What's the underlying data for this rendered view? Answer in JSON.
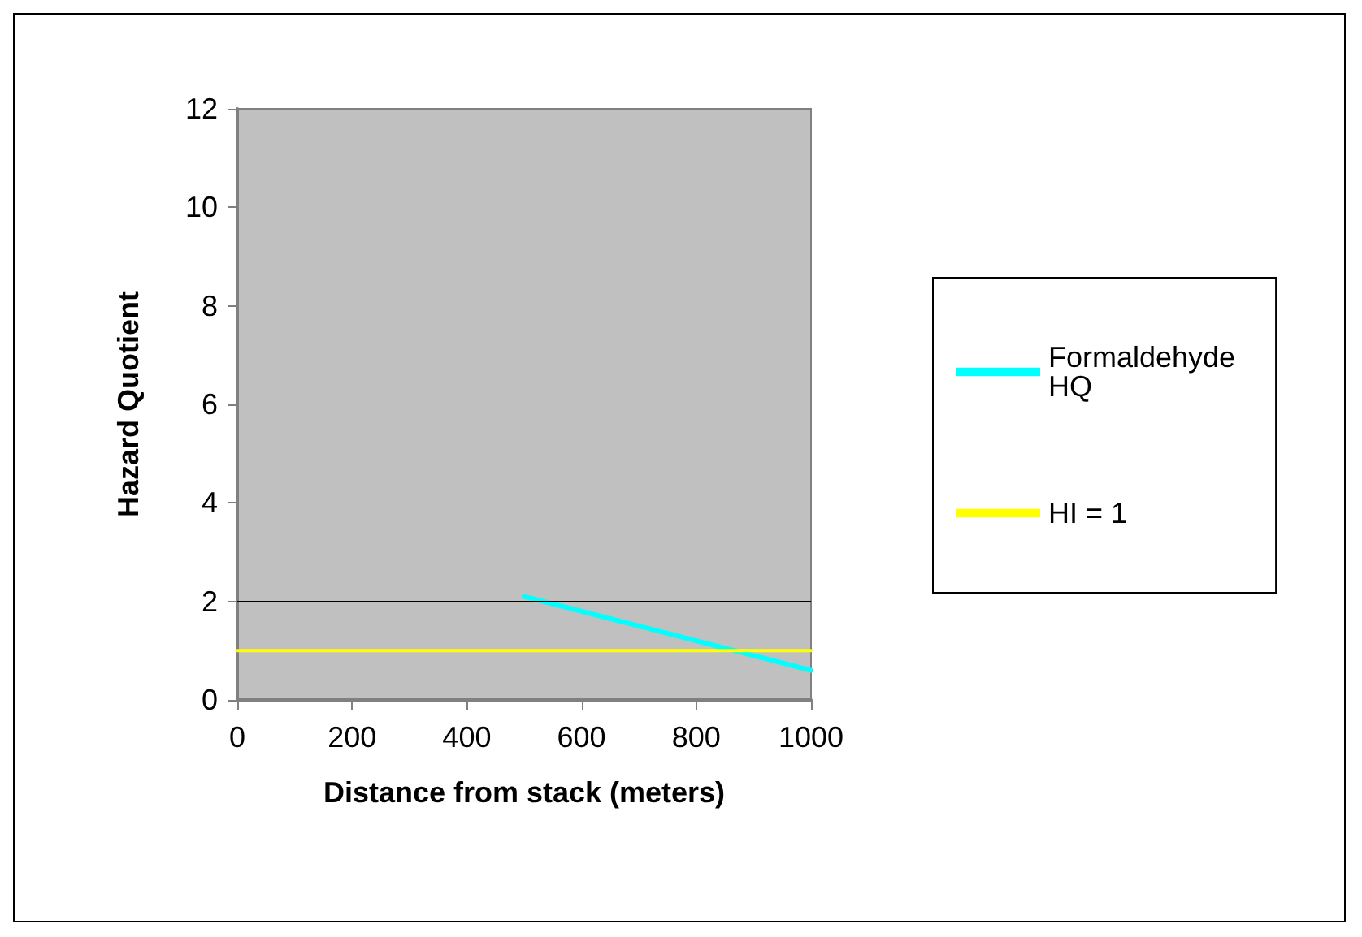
{
  "chart_data": {
    "type": "line",
    "xlabel": "Distance from stack (meters)",
    "ylabel": "Hazard Quotient",
    "series": [
      {
        "name": "Formaldehyde HQ",
        "color": "#00ffff",
        "x": [
          500,
          1000
        ],
        "values": [
          2.1,
          0.6
        ]
      },
      {
        "name": "HI = 1",
        "color": "#ffff00",
        "x": [
          0,
          1000
        ],
        "values": [
          1,
          1
        ]
      }
    ],
    "xlim": [
      0,
      1000
    ],
    "xticks": [
      0,
      200,
      400,
      600,
      800,
      1000
    ],
    "ylim": [
      0,
      12
    ],
    "yticks": [
      0,
      2,
      4,
      6,
      8,
      10,
      12
    ],
    "ref_lines": [
      {
        "axis": "y",
        "value": 2,
        "color": "#000000"
      }
    ],
    "grid": false,
    "legend": "right",
    "marker": "none",
    "line_style": "solid"
  }
}
